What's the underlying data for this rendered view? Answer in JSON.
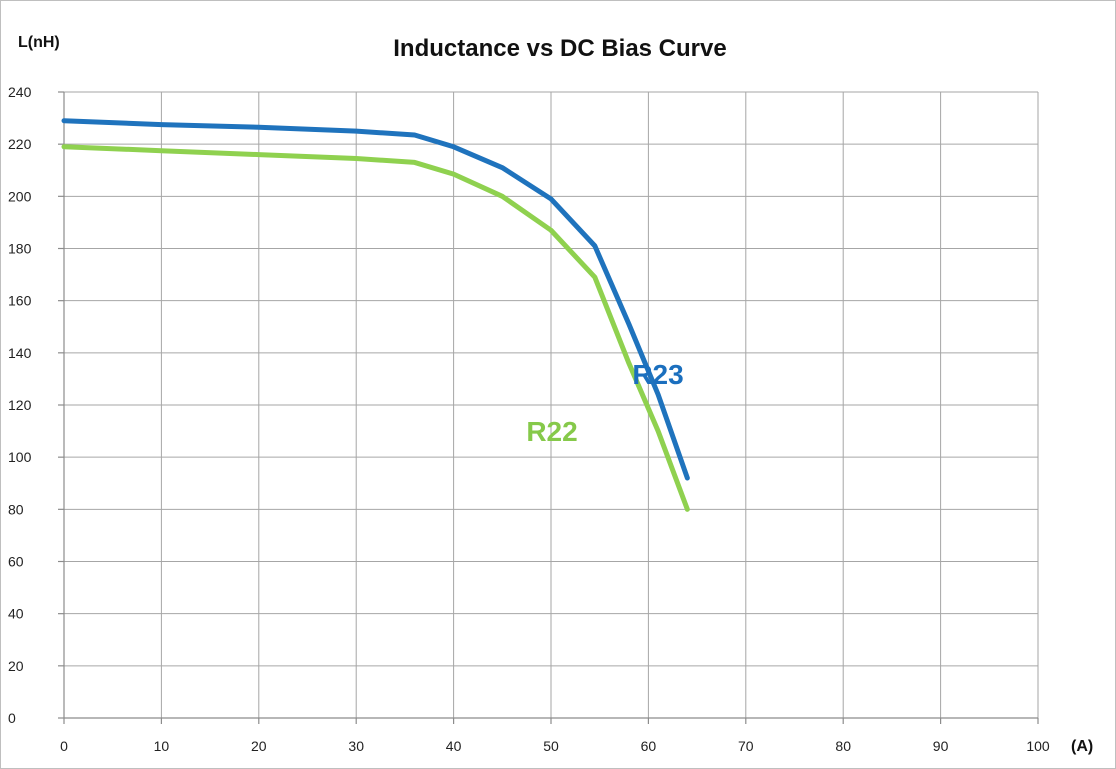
{
  "chart_data": {
    "type": "line",
    "title": "Inductance vs DC Bias Curve",
    "ylabel": "L(nH)",
    "xlabel": "(A)",
    "xlim": [
      0,
      100
    ],
    "ylim": [
      0,
      240
    ],
    "x_ticks": [
      0,
      10,
      20,
      30,
      40,
      50,
      60,
      70,
      80,
      90,
      100
    ],
    "y_ticks": [
      0,
      20,
      40,
      60,
      80,
      100,
      120,
      140,
      160,
      180,
      200,
      220,
      240
    ],
    "grid": true,
    "legend": "inline labels",
    "series": [
      {
        "name": "R23",
        "color": "#1f73bd",
        "label_color": "#1b6fbe",
        "x": [
          0,
          10,
          20,
          30,
          36,
          40,
          45,
          50,
          54.5,
          58,
          61,
          64
        ],
        "y": [
          229,
          227.5,
          226.5,
          225,
          223.5,
          219,
          211,
          199,
          181,
          151,
          124,
          92
        ]
      },
      {
        "name": "R22",
        "color": "#8fd14f",
        "label_color": "#86c94a",
        "x": [
          0,
          10,
          20,
          30,
          36,
          40,
          45,
          50,
          54.5,
          58,
          61,
          64
        ],
        "y": [
          219,
          217.5,
          216,
          214.5,
          213,
          208.5,
          200,
          187,
          169,
          136,
          110,
          80
        ]
      }
    ]
  }
}
